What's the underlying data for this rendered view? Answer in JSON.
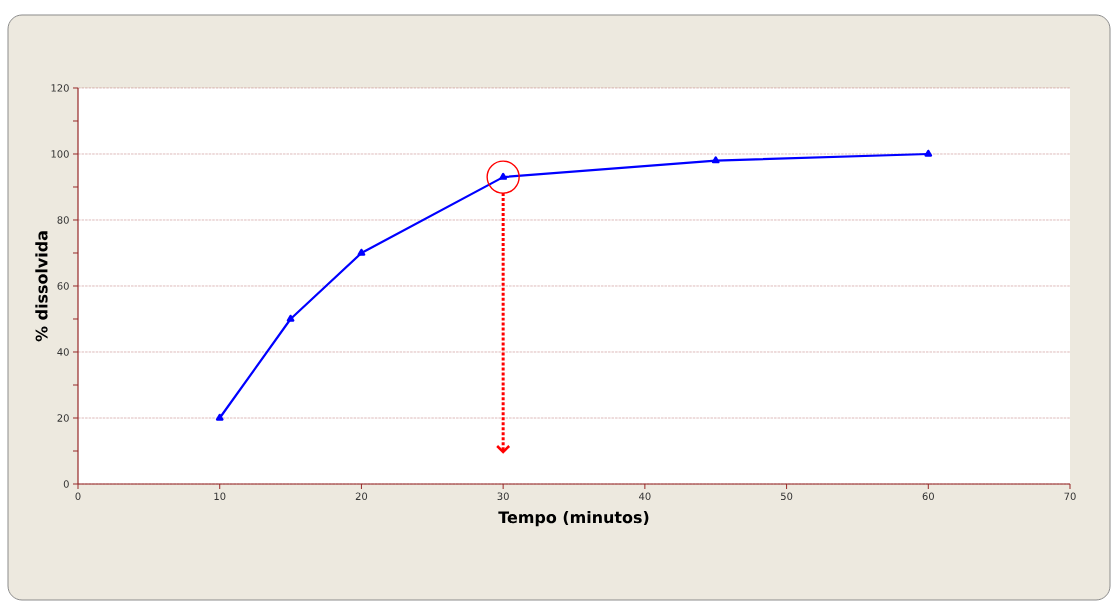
{
  "chart_data": {
    "type": "line",
    "xlabel": "Tempo (minutos)",
    "ylabel": "% dissolvida",
    "x": [
      10,
      15,
      20,
      30,
      45,
      60
    ],
    "series": [
      {
        "color": "#0000ff",
        "values": [
          20,
          50,
          70,
          93,
          98,
          100
        ]
      }
    ],
    "xlim": [
      0,
      70
    ],
    "xticks": [
      0,
      10,
      20,
      30,
      40,
      50,
      60,
      70
    ],
    "ylim": [
      0,
      120
    ],
    "yticks": [
      0,
      20,
      40,
      60,
      80,
      100,
      120
    ],
    "grid": "y",
    "marker": "triangle",
    "line_style": "solid",
    "ref_lines": [
      {
        "axis": "x",
        "value": 30,
        "color": "#ff0000",
        "line_style": "dotted"
      }
    ]
  }
}
